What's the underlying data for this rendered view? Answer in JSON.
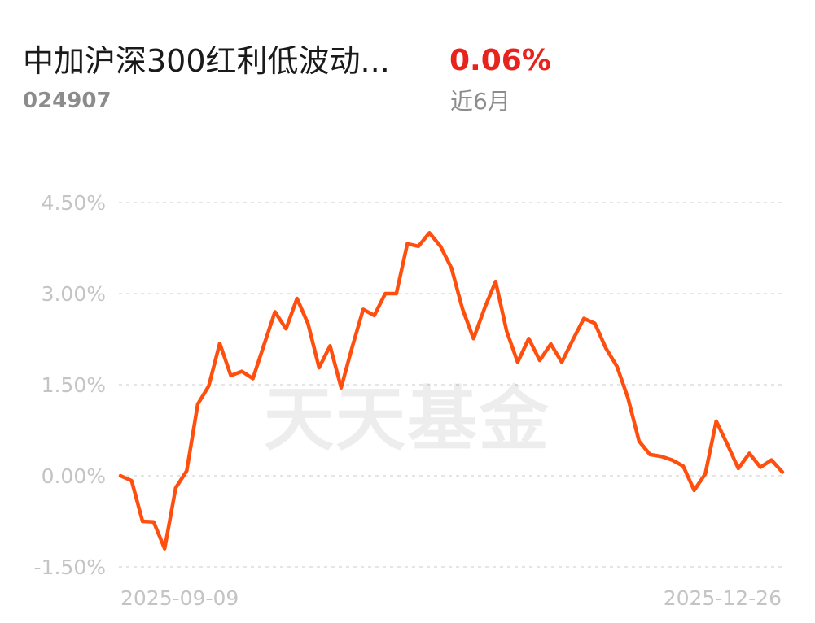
{
  "header": {
    "fund_name": "中加沪深300红利低波动...",
    "fund_code": "024907",
    "return_value": "0.06%",
    "return_period": "近6月"
  },
  "colors": {
    "line": "#ff4f0f",
    "return_positive": "#e8231e",
    "gridline": "#e5e5e5",
    "tick_label": "#c4c4c4"
  },
  "watermark": "天天基金",
  "chart_data": {
    "type": "line",
    "title": "",
    "xlabel": "",
    "ylabel": "",
    "ylim": [
      -1.5,
      4.5
    ],
    "y_ticks": [
      4.5,
      3.0,
      1.5,
      0.0,
      -1.5
    ],
    "y_tick_labels": [
      "4.50%",
      "3.00%",
      "1.50%",
      "0.00%",
      "-1.50%"
    ],
    "x_tick_labels": [
      "2025-09-09",
      "2025-12-26"
    ],
    "grid": true,
    "legend": "none",
    "series": [
      {
        "values": [
          0.0,
          -0.08,
          -0.75,
          -0.76,
          -1.2,
          -0.2,
          0.08,
          1.18,
          1.48,
          2.18,
          1.65,
          1.72,
          1.6,
          2.15,
          2.7,
          2.42,
          2.92,
          2.5,
          1.78,
          2.14,
          1.45,
          2.12,
          2.74,
          2.64,
          3.0,
          3.0,
          3.82,
          3.78,
          4.0,
          3.78,
          3.42,
          2.75,
          2.26,
          2.76,
          3.2,
          2.38,
          1.87,
          2.26,
          1.9,
          2.17,
          1.87,
          2.24,
          2.59,
          2.51,
          2.1,
          1.8,
          1.28,
          0.57,
          0.35,
          0.32,
          0.26,
          0.16,
          -0.24,
          0.03,
          0.9,
          0.52,
          0.12,
          0.37,
          0.14,
          0.26,
          0.06
        ]
      }
    ]
  }
}
